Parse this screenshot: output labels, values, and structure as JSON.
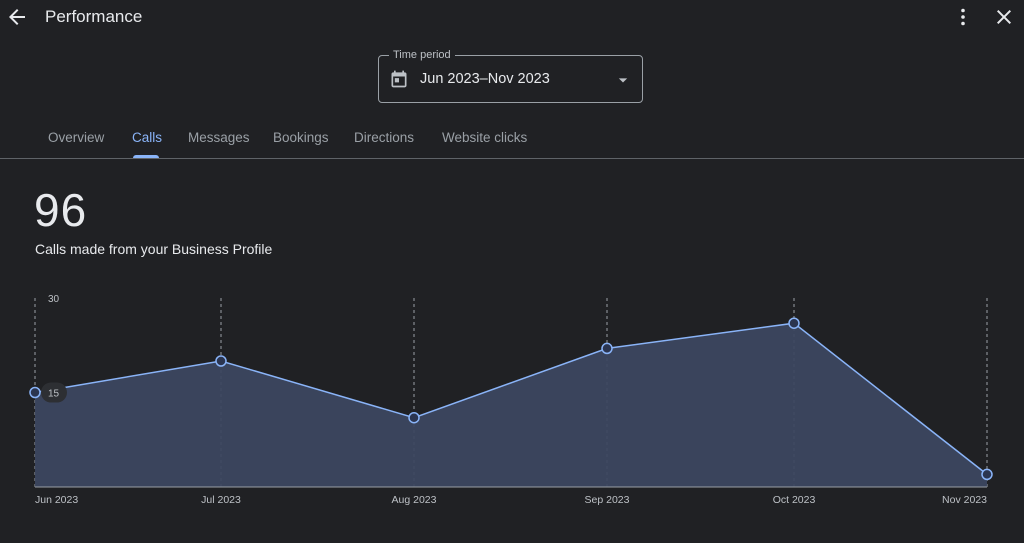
{
  "header": {
    "title": "Performance",
    "back_icon": "arrow-back-icon",
    "more_icon": "more-vert-icon",
    "close_icon": "close-icon"
  },
  "time_period": {
    "label": "Time period",
    "value": "Jun 2023–Nov 2023",
    "icon": "calendar-icon"
  },
  "tabs": [
    {
      "label": "Overview",
      "active": false
    },
    {
      "label": "Calls",
      "active": true
    },
    {
      "label": "Messages",
      "active": false
    },
    {
      "label": "Bookings",
      "active": false
    },
    {
      "label": "Directions",
      "active": false
    },
    {
      "label": "Website clicks",
      "active": false
    }
  ],
  "summary": {
    "total": "96",
    "description": "Calls made from your Business Profile"
  },
  "colors": {
    "background": "#202124",
    "accent": "#8ab4f8",
    "area_fill": "#3c4760"
  },
  "chart_data": {
    "type": "area",
    "categories": [
      "Jun 2023",
      "Jul 2023",
      "Aug 2023",
      "Sep 2023",
      "Oct 2023",
      "Nov 2023"
    ],
    "series": [
      {
        "values": [
          15,
          20,
          11,
          22,
          26,
          2
        ]
      }
    ],
    "y_ticks": [
      "15",
      "30"
    ],
    "ylim": [
      0,
      30
    ],
    "grid": "vertical-dashed",
    "legend": "none"
  }
}
